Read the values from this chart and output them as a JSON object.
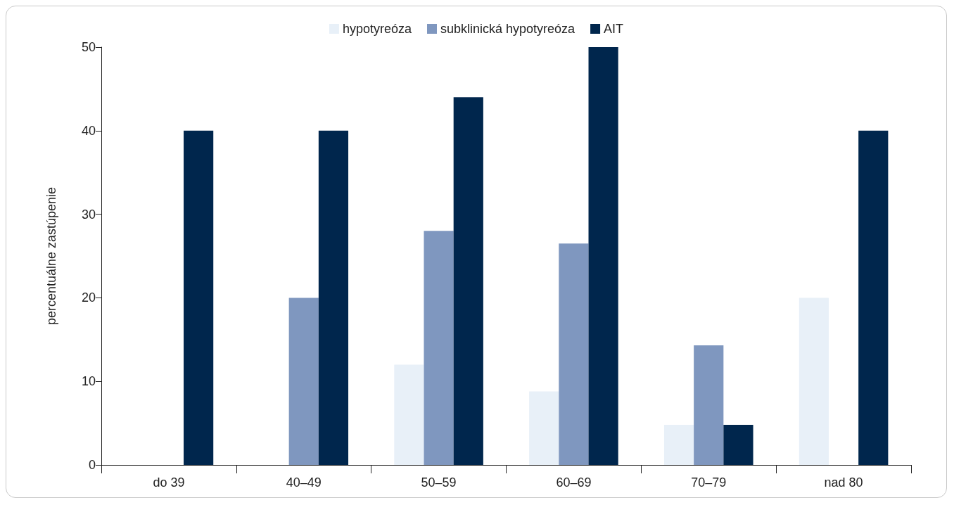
{
  "chart_data": {
    "type": "bar",
    "ylabel": "percentuálne zastúpenie",
    "categories": [
      "do 39",
      "40–49",
      "50–59",
      "60–69",
      "70–79",
      "nad 80"
    ],
    "series": [
      {
        "name": "hypotyreóza",
        "color": "#e8f0f8",
        "values": [
          0,
          0,
          12,
          8.8,
          4.8,
          20
        ]
      },
      {
        "name": "subklinická hypotyreóza",
        "color": "#7f97bf",
        "values": [
          0,
          20,
          28,
          26.5,
          14.3,
          0
        ]
      },
      {
        "name": "AIT",
        "color": "#00264d",
        "values": [
          40,
          40,
          44,
          50,
          4.8,
          40
        ]
      }
    ],
    "ylim": [
      0,
      50
    ],
    "yticks": [
      0,
      10,
      20,
      30,
      40,
      50
    ],
    "grid": false,
    "legend": "top"
  }
}
